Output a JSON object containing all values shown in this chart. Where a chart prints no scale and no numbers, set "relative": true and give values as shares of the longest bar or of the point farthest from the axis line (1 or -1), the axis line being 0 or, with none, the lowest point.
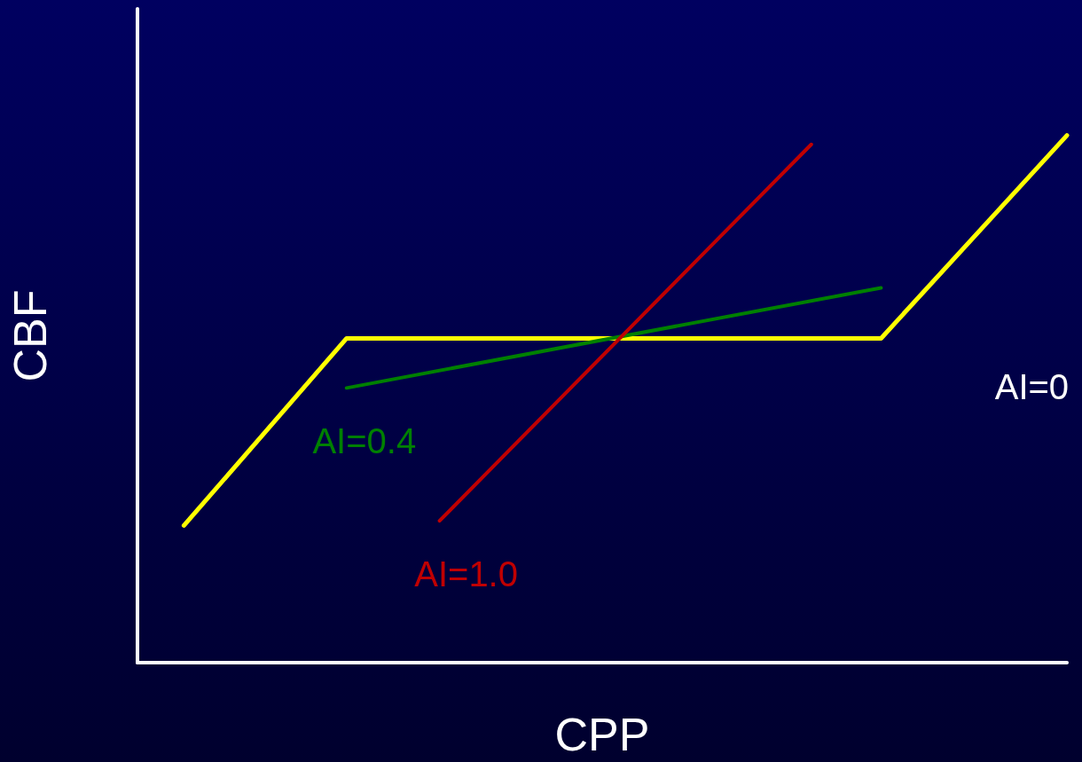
{
  "chart_data": {
    "type": "line",
    "xlabel": "CPP",
    "ylabel": "CBF",
    "relative": true,
    "legend": false,
    "grid": false,
    "marker": "none",
    "line_style": "solid",
    "categories": [
      null,
      null,
      null,
      null,
      null,
      null,
      null,
      null,
      null,
      null,
      null,
      null,
      null,
      null,
      null,
      null,
      null,
      null,
      null,
      null,
      null,
      null,
      null,
      null,
      null,
      null,
      null,
      null,
      null,
      null,
      null,
      null,
      null,
      null,
      null,
      null,
      null,
      null,
      null,
      null,
      null
    ],
    "series": [
      {
        "name": "AI=0",
        "color": "#ffff00",
        "values": [
          null,
          null,
          0.26,
          null,
          null,
          null,
          null,
          null,
          null,
          0.615,
          null,
          null,
          null,
          null,
          null,
          null,
          null,
          null,
          null,
          null,
          null,
          null,
          null,
          null,
          null,
          null,
          null,
          null,
          null,
          null,
          null,
          null,
          0.615,
          null,
          null,
          null,
          null,
          null,
          null,
          null,
          1
        ]
      },
      {
        "name": "AI=0.4",
        "color": "#008000",
        "values": [
          null,
          null,
          null,
          null,
          null,
          null,
          null,
          null,
          null,
          0.521,
          null,
          null,
          null,
          null,
          null,
          null,
          null,
          null,
          null,
          null,
          null,
          null,
          null,
          null,
          null,
          null,
          null,
          null,
          null,
          null,
          null,
          null,
          0.711,
          null,
          null,
          null,
          null,
          null,
          null,
          null,
          null
        ]
      },
      {
        "name": "AI=1.0",
        "color": "#c00000",
        "values": [
          null,
          null,
          null,
          null,
          null,
          null,
          null,
          null,
          null,
          null,
          null,
          null,
          null,
          0.269,
          null,
          null,
          null,
          null,
          null,
          null,
          null,
          null,
          null,
          null,
          null,
          null,
          null,
          null,
          null,
          0.983,
          null,
          null,
          null,
          null,
          null,
          null,
          null,
          null,
          null,
          null,
          null
        ]
      }
    ]
  }
}
